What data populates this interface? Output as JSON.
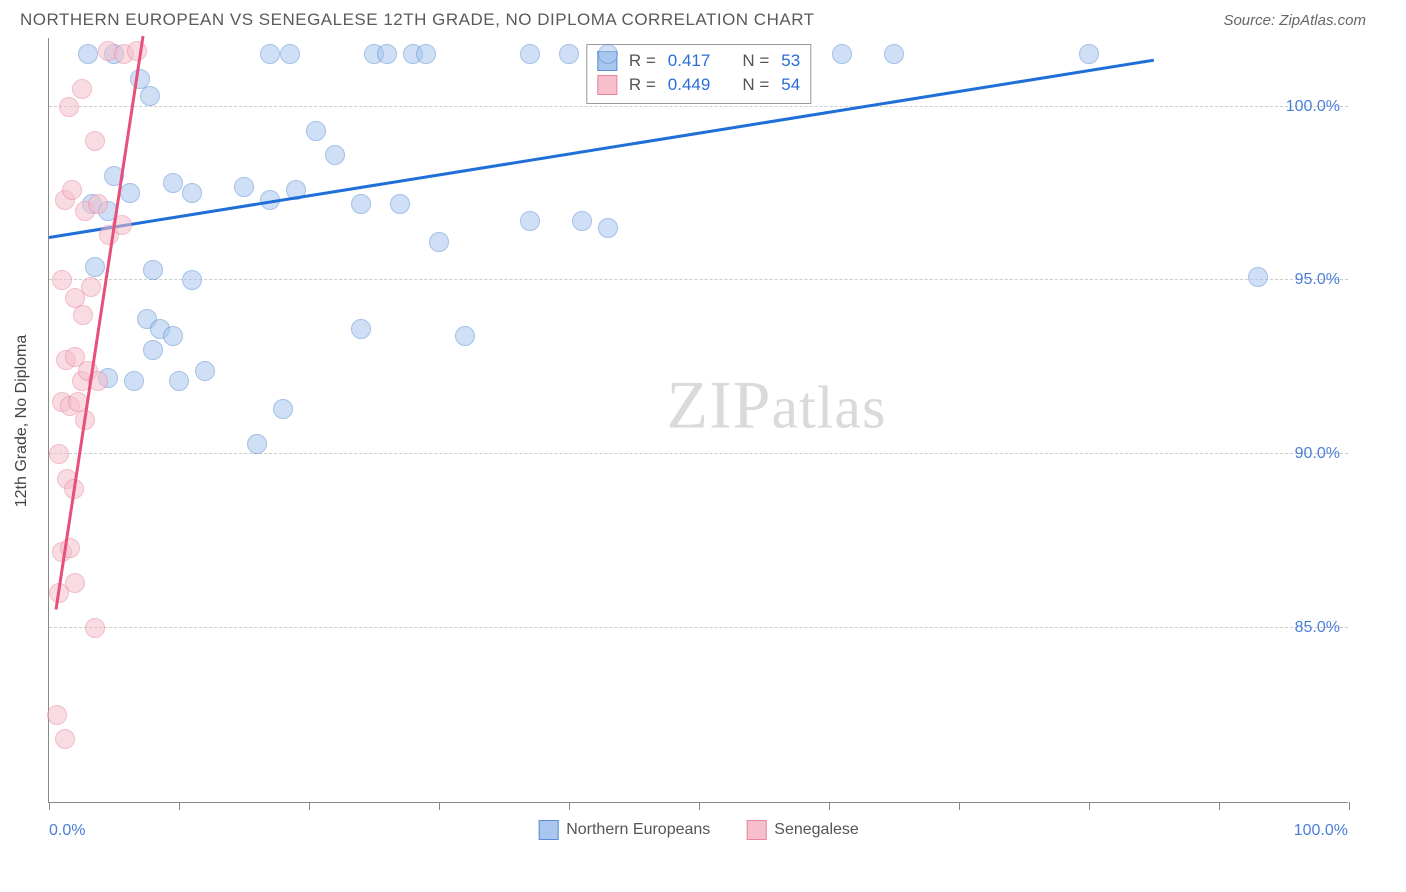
{
  "title": "NORTHERN EUROPEAN VS SENEGALESE 12TH GRADE, NO DIPLOMA CORRELATION CHART",
  "source": "Source: ZipAtlas.com",
  "y_axis_title": "12th Grade, No Diploma",
  "watermark_a": "ZIP",
  "watermark_b": "atlas",
  "chart": {
    "type": "scatter",
    "xlim": [
      0,
      100
    ],
    "ylim": [
      80,
      102
    ],
    "y_gridlines": [
      85,
      90,
      95,
      100
    ],
    "y_ticklabels": [
      "85.0%",
      "90.0%",
      "95.0%",
      "100.0%"
    ],
    "x_ticks": [
      0,
      10,
      20,
      30,
      40,
      50,
      60,
      70,
      80,
      90,
      100
    ],
    "x_label_min": "0.0%",
    "x_label_max": "100.0%",
    "grid_color": "#cccccc",
    "axis_color": "#888888",
    "background_color": "#ffffff",
    "marker_radius": 9,
    "marker_opacity": 0.55,
    "series": [
      {
        "name": "Northern Europeans",
        "color_fill": "#a8c6ee",
        "color_stroke": "#5a8dd6",
        "trend_color": "#1f6fd8",
        "trend": {
          "x1": 0,
          "y1": 96.2,
          "x2": 85,
          "y2": 101.3
        },
        "R_label": "R =",
        "R": "0.417",
        "N_label": "N =",
        "N": "53",
        "points": [
          [
            3.0,
            101.5
          ],
          [
            5.0,
            101.5
          ],
          [
            17,
            101.5
          ],
          [
            18.5,
            101.5
          ],
          [
            25,
            101.5
          ],
          [
            26,
            101.5
          ],
          [
            28,
            101.5
          ],
          [
            29,
            101.5
          ],
          [
            37,
            101.5
          ],
          [
            40,
            101.5
          ],
          [
            43,
            101.5
          ],
          [
            61,
            101.5
          ],
          [
            65,
            101.5
          ],
          [
            80,
            101.5
          ],
          [
            7,
            100.8
          ],
          [
            7.8,
            100.3
          ],
          [
            20.5,
            99.3
          ],
          [
            22,
            98.6
          ],
          [
            5,
            98.0
          ],
          [
            9.5,
            97.8
          ],
          [
            11,
            97.5
          ],
          [
            3.3,
            97.2
          ],
          [
            4.5,
            97.0
          ],
          [
            6.2,
            97.5
          ],
          [
            15,
            97.7
          ],
          [
            17,
            97.3
          ],
          [
            19,
            97.6
          ],
          [
            24,
            97.2
          ],
          [
            27,
            97.2
          ],
          [
            30,
            96.1
          ],
          [
            37,
            96.7
          ],
          [
            41,
            96.7
          ],
          [
            43,
            96.5
          ],
          [
            93,
            95.1
          ],
          [
            3.5,
            95.4
          ],
          [
            8,
            95.3
          ],
          [
            11,
            95.0
          ],
          [
            7.5,
            93.9
          ],
          [
            8.5,
            93.6
          ],
          [
            8,
            93.0
          ],
          [
            9.5,
            93.4
          ],
          [
            24,
            93.6
          ],
          [
            32,
            93.4
          ],
          [
            4.5,
            92.2
          ],
          [
            6.5,
            92.1
          ],
          [
            10,
            92.1
          ],
          [
            12,
            92.4
          ],
          [
            18,
            91.3
          ],
          [
            16,
            90.3
          ]
        ]
      },
      {
        "name": "Senegalese",
        "color_fill": "#f5bfcb",
        "color_stroke": "#e985a1",
        "trend_color": "#e84f7a",
        "trend": {
          "x1": 0.5,
          "y1": 85.5,
          "x2": 7.2,
          "y2": 102
        },
        "R_label": "R =",
        "R": "0.449",
        "N_label": "N =",
        "N": "54",
        "points": [
          [
            4.5,
            101.6
          ],
          [
            5.8,
            101.5
          ],
          [
            6.8,
            101.6
          ],
          [
            1.5,
            100.0
          ],
          [
            2.5,
            100.5
          ],
          [
            3.5,
            99.0
          ],
          [
            1.2,
            97.3
          ],
          [
            1.8,
            97.6
          ],
          [
            2.8,
            97.0
          ],
          [
            3.8,
            97.2
          ],
          [
            4.6,
            96.3
          ],
          [
            5.6,
            96.6
          ],
          [
            1.0,
            95.0
          ],
          [
            2.0,
            94.5
          ],
          [
            2.6,
            94.0
          ],
          [
            3.2,
            94.8
          ],
          [
            1.3,
            92.7
          ],
          [
            2.0,
            92.8
          ],
          [
            2.5,
            92.1
          ],
          [
            3.0,
            92.4
          ],
          [
            3.8,
            92.1
          ],
          [
            1.0,
            91.5
          ],
          [
            1.6,
            91.4
          ],
          [
            2.2,
            91.5
          ],
          [
            2.8,
            91.0
          ],
          [
            0.8,
            90.0
          ],
          [
            1.4,
            89.3
          ],
          [
            1.9,
            89.0
          ],
          [
            1.0,
            87.2
          ],
          [
            1.6,
            87.3
          ],
          [
            2.0,
            86.3
          ],
          [
            0.8,
            86.0
          ],
          [
            3.5,
            85.0
          ],
          [
            0.6,
            82.5
          ],
          [
            1.2,
            81.8
          ]
        ]
      }
    ]
  },
  "legend_items": [
    "Northern Europeans",
    "Senegalese"
  ]
}
